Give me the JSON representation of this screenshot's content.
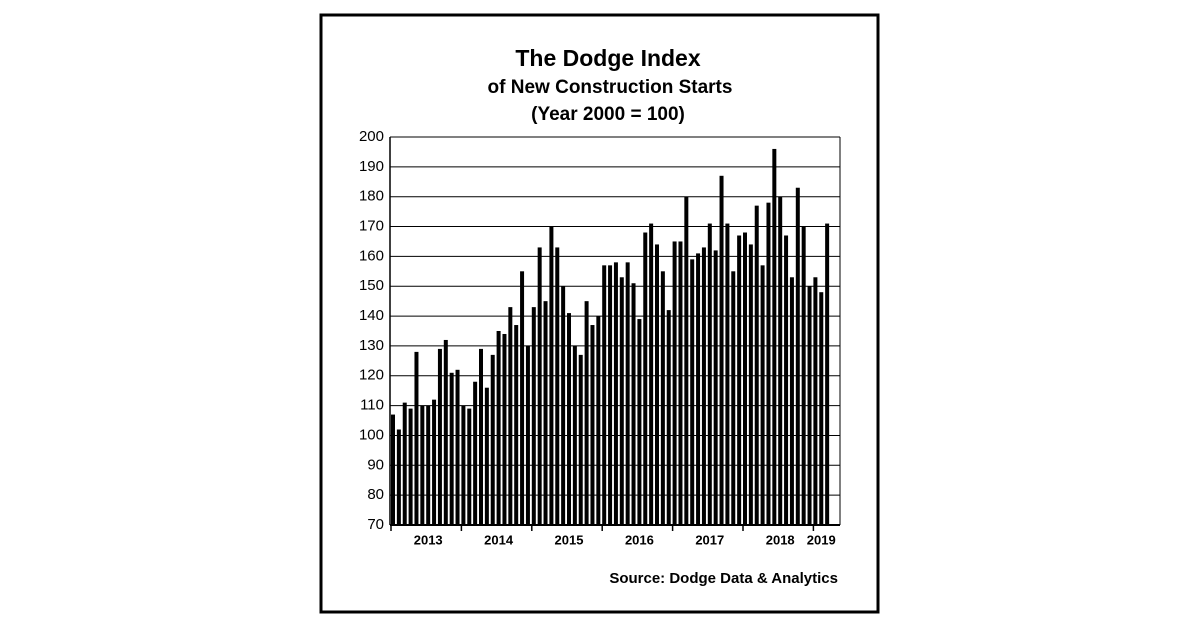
{
  "chart_data": {
    "type": "bar",
    "title": "The Dodge Index",
    "subtitle": [
      "of New Construction Starts",
      "(Year 2000 = 100)"
    ],
    "source": "Source:  Dodge Data & Analytics",
    "categories": [
      null,
      null,
      null,
      null,
      null,
      null,
      "2013",
      null,
      null,
      null,
      null,
      null,
      null,
      null,
      null,
      null,
      null,
      null,
      "2014",
      null,
      null,
      null,
      null,
      null,
      null,
      null,
      null,
      null,
      null,
      null,
      "2015",
      null,
      null,
      null,
      null,
      null,
      null,
      null,
      null,
      null,
      null,
      null,
      "2016",
      null,
      null,
      null,
      null,
      null,
      null,
      null,
      null,
      null,
      null,
      null,
      "2017",
      null,
      null,
      null,
      null,
      null,
      null,
      null,
      null,
      null,
      null,
      null,
      "2018",
      null,
      null,
      null,
      null,
      null,
      null,
      "2019",
      null
    ],
    "values": [
      107,
      102,
      111,
      109,
      128,
      110,
      110,
      112,
      129,
      132,
      121,
      122,
      110,
      109,
      118,
      129,
      116,
      127,
      135,
      134,
      143,
      137,
      155,
      130,
      143,
      163,
      145,
      170,
      163,
      150,
      141,
      130,
      127,
      145,
      137,
      140,
      157,
      157,
      158,
      153,
      158,
      151,
      139,
      168,
      171,
      164,
      155,
      142,
      165,
      165,
      180,
      159,
      161,
      163,
      171,
      162,
      187,
      171,
      155,
      167,
      168,
      164,
      177,
      157,
      178,
      196,
      180,
      167,
      153,
      183,
      170,
      150,
      153,
      148,
      171
    ],
    "color": "#000000",
    "ylim": [
      70,
      200
    ],
    "yticks": [
      70,
      80,
      90,
      100,
      110,
      120,
      130,
      140,
      150,
      160,
      170,
      180,
      190,
      200
    ],
    "grid": true
  }
}
